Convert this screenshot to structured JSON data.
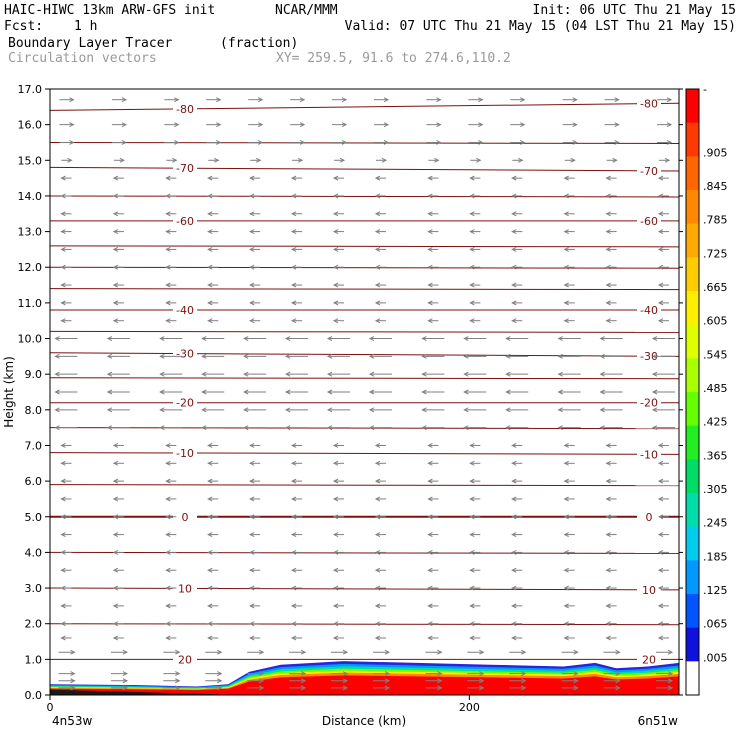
{
  "header": {
    "model": "HAIC-HIWC 13km ARW-GFS init",
    "org": "NCAR/MMM",
    "init": "Init: 06 UTC Thu 21 May 15",
    "fcst_label": "Fcst:",
    "fcst_value": "1 h",
    "valid": "Valid: 07 UTC Thu 21 May 15 (04 LST Thu 21 May 15)",
    "field": "Boundary Layer Tracer",
    "units": "(fraction)",
    "vectors": "Circulation vectors",
    "xy": "XY= 259.5, 91.6 to 274.6,110.2"
  },
  "colors": {
    "contour": "#7a1010",
    "vector": "#7f7f7f",
    "header_gray": "#9a9a9a"
  },
  "chart_data": {
    "type": "heatmap",
    "title": "Boundary Layer Tracer",
    "units": "(fraction)",
    "xlabel": "Distance (km)",
    "ylabel": "Height (km)",
    "xlim": [
      0,
      300
    ],
    "ylim": [
      0,
      17
    ],
    "x_ticks": [
      0,
      200
    ],
    "y_ticks": [
      "0.0",
      "1.0",
      "2.0",
      "3.0",
      "4.0",
      "5.0",
      "6.0",
      "7.0",
      "8.0",
      "9.0",
      "10.0",
      "11.0",
      "12.0",
      "13.0",
      "14.0",
      "15.0",
      "16.0",
      "17.0"
    ],
    "endpoint_left": "4n53w",
    "endpoint_right": "6n51w",
    "colorbar": {
      "labels": [
        "-",
        ".905",
        ".845",
        ".785",
        ".725",
        ".665",
        ".605",
        ".545",
        ".485",
        ".425",
        ".365",
        ".305",
        ".245",
        ".185",
        ".125",
        ".065",
        ".005"
      ],
      "colors": [
        "#ff0000",
        "#ff3a00",
        "#ff6600",
        "#ff8800",
        "#ffaa00",
        "#ffcc00",
        "#ffee00",
        "#ddff00",
        "#aaff00",
        "#66ff00",
        "#22ee22",
        "#00dd66",
        "#00ddaa",
        "#00ccee",
        "#0099ff",
        "#0055ff",
        "#1111dd",
        "#ffffff"
      ]
    },
    "tracer_profile": [
      {
        "x": 0,
        "top": 0.3
      },
      {
        "x": 40,
        "top": 0.28
      },
      {
        "x": 70,
        "top": 0.24
      },
      {
        "x": 85,
        "top": 0.3
      },
      {
        "x": 95,
        "top": 0.65
      },
      {
        "x": 110,
        "top": 0.85
      },
      {
        "x": 140,
        "top": 0.95
      },
      {
        "x": 175,
        "top": 0.9
      },
      {
        "x": 210,
        "top": 0.85
      },
      {
        "x": 245,
        "top": 0.8
      },
      {
        "x": 260,
        "top": 0.9
      },
      {
        "x": 270,
        "top": 0.75
      },
      {
        "x": 285,
        "top": 0.8
      },
      {
        "x": 300,
        "top": 0.9
      }
    ],
    "isotherms": [
      {
        "label": "20",
        "levels": [
          1.0,
          1.0
        ]
      },
      {
        "label": "10",
        "levels": [
          3.0,
          2.95
        ]
      },
      {
        "label": "0",
        "levels": [
          5.0,
          5.0
        ]
      },
      {
        "label": "-10",
        "levels": [
          6.8,
          6.75
        ]
      },
      {
        "label": "-20",
        "levels": [
          8.2,
          8.2
        ]
      },
      {
        "label": "-30",
        "levels": [
          9.6,
          9.5
        ]
      },
      {
        "label": "-40",
        "levels": [
          10.8,
          10.8
        ]
      },
      {
        "label": "-60",
        "levels": [
          13.3,
          13.3
        ]
      },
      {
        "label": "-70",
        "levels": [
          14.8,
          14.7
        ]
      },
      {
        "label": "-80",
        "levels": [
          16.4,
          16.6
        ]
      }
    ],
    "unlabeled_isotherms": [
      2.0,
      4.0,
      5.9,
      7.5,
      8.9,
      10.2,
      11.4,
      12.0,
      12.6,
      14.0,
      15.5
    ],
    "vector_levels": [
      0.2,
      0.4,
      0.6,
      1.2,
      1.6,
      2.0,
      2.5,
      3.0,
      3.5,
      4.0,
      4.5,
      5.0,
      5.5,
      6.0,
      6.5,
      7.0,
      7.5,
      8.0,
      8.5,
      9.0,
      9.5,
      10.0,
      10.5,
      11.0,
      11.5,
      12.0,
      12.5,
      13.0,
      13.5,
      14.0,
      14.5,
      15.0,
      15.5,
      16.0,
      16.7
    ],
    "vector_columns": [
      5,
      30,
      55,
      75,
      95,
      115,
      135,
      155,
      180,
      200,
      220,
      245,
      265,
      290
    ]
  }
}
